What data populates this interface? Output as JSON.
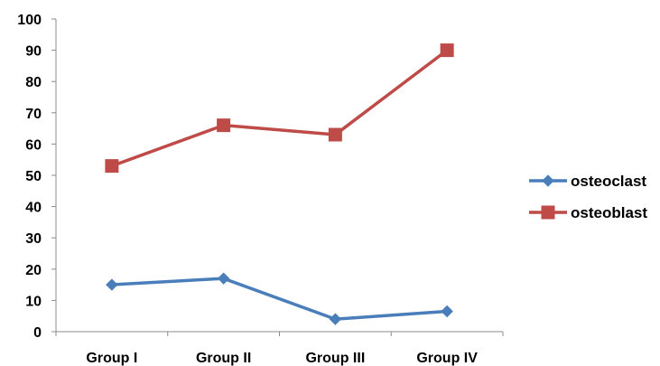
{
  "chart_data": {
    "type": "line",
    "categories": [
      "Group I",
      "Group II",
      "Group III",
      "Group IV"
    ],
    "series": [
      {
        "name": "osteoclast",
        "values": [
          15,
          17,
          4,
          6.5
        ],
        "color": "#4a7ebb",
        "marker": "diamond"
      },
      {
        "name": "osteoblast",
        "values": [
          53,
          66,
          63,
          90
        ],
        "color": "#be4b48",
        "marker": "square"
      }
    ],
    "ylim": [
      0,
      100
    ],
    "yticks": [
      0,
      10,
      20,
      30,
      40,
      50,
      60,
      70,
      80,
      90,
      100
    ],
    "title": "",
    "xlabel": "",
    "ylabel": "",
    "grid": false,
    "legend": "right"
  }
}
